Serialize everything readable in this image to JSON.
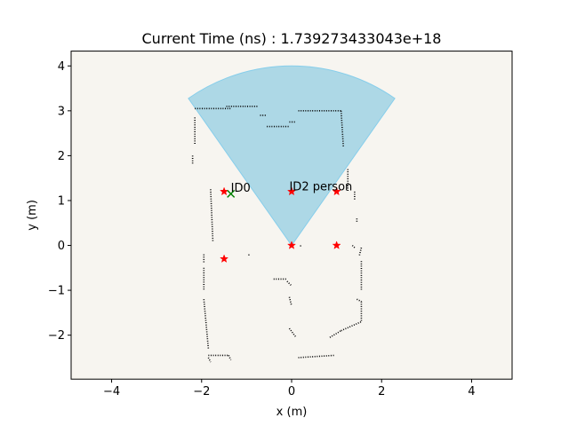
{
  "chart_data": {
    "type": "scatter",
    "title": "Current Time (ns) : 1.739273433043e+18",
    "xlabel": "x (m)",
    "ylabel": "y (m)",
    "xlim": [
      -4.9,
      4.9
    ],
    "ylim": [
      -2.98,
      4.33
    ],
    "xticks": [
      -4,
      -2,
      0,
      2,
      4
    ],
    "yticks": [
      -2,
      -1,
      0,
      1,
      2,
      3,
      4
    ],
    "xtick_labels": [
      "−4",
      "−2",
      "0",
      "2",
      "4"
    ],
    "ytick_labels": [
      "−2",
      "−1",
      "0",
      "1",
      "2",
      "3",
      "4"
    ],
    "grid": false,
    "colors": {
      "background": "#f7f5f0",
      "fov_fill": "#add8e6",
      "fov_edge": "#87ceeb",
      "star": "#ff0000",
      "cross": "#008000",
      "obstacle": "#000000"
    },
    "fov": {
      "origin": [
        0,
        0
      ],
      "radius": 4.0,
      "start_deg": 55,
      "end_deg": 125
    },
    "stars": [
      {
        "x": -1.5,
        "y": 1.2
      },
      {
        "x": 0.0,
        "y": 1.2
      },
      {
        "x": 1.0,
        "y": 1.2
      },
      {
        "x": -1.5,
        "y": -0.3
      },
      {
        "x": 0.0,
        "y": 0.0
      },
      {
        "x": 1.0,
        "y": 0.0
      }
    ],
    "crosses": [
      {
        "x": -1.35,
        "y": 1.15
      }
    ],
    "annotations": [
      {
        "text": "ID0",
        "x": -1.35,
        "y": 1.2
      },
      {
        "text": "ID2 person",
        "x": -0.05,
        "y": 1.23
      }
    ],
    "obstacles": [
      {
        "from": [
          -2.15,
          3.05
        ],
        "to": [
          -1.35,
          3.05
        ]
      },
      {
        "from": [
          -1.45,
          3.1
        ],
        "to": [
          -0.75,
          3.1
        ]
      },
      {
        "from": [
          -0.7,
          2.9
        ],
        "to": [
          -0.55,
          2.9
        ]
      },
      {
        "from": [
          -0.55,
          2.65
        ],
        "to": [
          -0.05,
          2.65
        ]
      },
      {
        "from": [
          -0.05,
          2.75
        ],
        "to": [
          0.1,
          2.75
        ]
      },
      {
        "from": [
          0.15,
          3.0
        ],
        "to": [
          1.1,
          3.0
        ]
      },
      {
        "from": [
          1.1,
          3.0
        ],
        "to": [
          1.15,
          2.2
        ]
      },
      {
        "from": [
          1.25,
          1.7
        ],
        "to": [
          1.25,
          1.2
        ]
      },
      {
        "from": [
          1.4,
          1.2
        ],
        "to": [
          1.4,
          1.0
        ]
      },
      {
        "from": [
          1.45,
          0.6
        ],
        "to": [
          1.45,
          0.5
        ]
      },
      {
        "from": [
          -2.15,
          2.85
        ],
        "to": [
          -2.15,
          2.25
        ]
      },
      {
        "from": [
          -2.2,
          2.0
        ],
        "to": [
          -2.2,
          1.8
        ]
      },
      {
        "from": [
          -1.8,
          1.25
        ],
        "to": [
          -1.75,
          0.1
        ]
      },
      {
        "from": [
          -1.95,
          -0.2
        ],
        "to": [
          -1.95,
          -0.4
        ]
      },
      {
        "from": [
          -1.95,
          -0.5
        ],
        "to": [
          -1.95,
          -1.0
        ]
      },
      {
        "from": [
          -1.95,
          -1.2
        ],
        "to": [
          -1.85,
          -2.3
        ]
      },
      {
        "from": [
          -1.85,
          -2.5
        ],
        "to": [
          -1.8,
          -2.6
        ]
      },
      {
        "from": [
          -1.85,
          -2.45
        ],
        "to": [
          -1.4,
          -2.45
        ]
      },
      {
        "from": [
          -1.4,
          -2.45
        ],
        "to": [
          -1.35,
          -2.55
        ]
      },
      {
        "from": [
          -0.95,
          -0.2
        ],
        "to": [
          -0.95,
          -0.25
        ]
      },
      {
        "from": [
          -0.4,
          -0.75
        ],
        "to": [
          -0.1,
          -0.75
        ]
      },
      {
        "from": [
          -0.1,
          -0.8
        ],
        "to": [
          0.0,
          -0.9
        ]
      },
      {
        "from": [
          -0.05,
          -1.15
        ],
        "to": [
          0.0,
          -1.35
        ]
      },
      {
        "from": [
          -0.05,
          -1.85
        ],
        "to": [
          0.1,
          -2.05
        ]
      },
      {
        "from": [
          0.15,
          -2.5
        ],
        "to": [
          0.95,
          -2.45
        ]
      },
      {
        "from": [
          0.85,
          -2.05
        ],
        "to": [
          1.1,
          -1.9
        ]
      },
      {
        "from": [
          1.1,
          -1.9
        ],
        "to": [
          1.55,
          -1.7
        ]
      },
      {
        "from": [
          1.45,
          -1.2
        ],
        "to": [
          1.55,
          -1.25
        ]
      },
      {
        "from": [
          1.55,
          -1.25
        ],
        "to": [
          1.55,
          -1.7
        ]
      },
      {
        "from": [
          1.55,
          -0.05
        ],
        "to": [
          1.5,
          -0.25
        ]
      },
      {
        "from": [
          1.55,
          -0.35
        ],
        "to": [
          1.55,
          -1.0
        ]
      },
      {
        "from": [
          1.35,
          0.0
        ],
        "to": [
          1.4,
          -0.05
        ]
      },
      {
        "from": [
          0.2,
          0.0
        ],
        "to": [
          0.2,
          -0.02
        ]
      }
    ]
  }
}
